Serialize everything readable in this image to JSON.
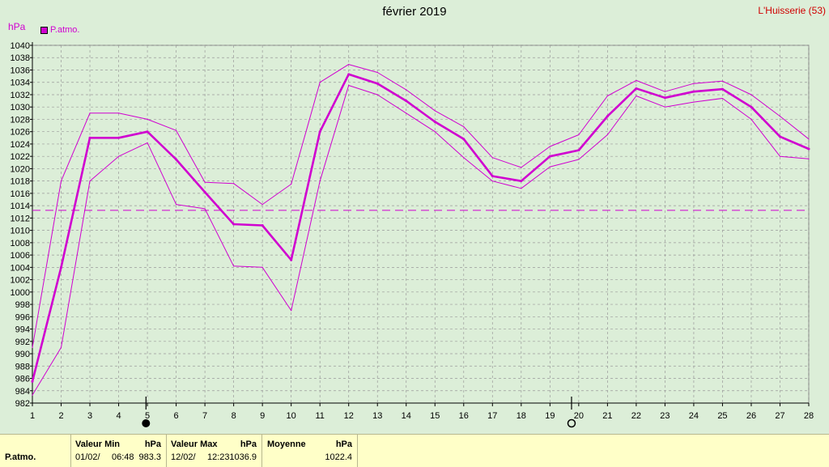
{
  "header": {
    "title": "février 2019",
    "station": "L'Huisserie (53)",
    "unit": "hPa",
    "legend_label": "P.atmo."
  },
  "colors": {
    "series": "#d000d0",
    "station": "#d00000",
    "plot_bg": "#dceed8",
    "footer_bg": "#ffffc8",
    "grid": "#9a9a9a"
  },
  "moon_phases": {
    "full_moon_day": 5,
    "new_moon_day": 20
  },
  "chart_data": {
    "type": "line",
    "title": "février 2019",
    "ylabel": "hPa",
    "ylim": [
      982,
      1040
    ],
    "xlim": [
      1,
      28
    ],
    "x": [
      1,
      2,
      3,
      4,
      5,
      6,
      7,
      8,
      9,
      10,
      11,
      12,
      13,
      14,
      15,
      16,
      17,
      18,
      19,
      20,
      21,
      22,
      23,
      24,
      25,
      26,
      27,
      28
    ],
    "y_ticks": [
      982,
      984,
      986,
      988,
      990,
      992,
      994,
      996,
      998,
      1000,
      1002,
      1004,
      1006,
      1008,
      1010,
      1012,
      1014,
      1016,
      1018,
      1020,
      1022,
      1024,
      1026,
      1028,
      1030,
      1032,
      1034,
      1036,
      1038,
      1040
    ],
    "x_ticks": [
      1,
      2,
      3,
      4,
      5,
      6,
      7,
      8,
      9,
      10,
      11,
      12,
      13,
      14,
      15,
      16,
      17,
      18,
      19,
      20,
      21,
      22,
      23,
      24,
      25,
      26,
      27,
      28
    ],
    "grid": true,
    "reference_line": 1013.25,
    "series": [
      {
        "name": "P.atmo.",
        "role": "mean",
        "values": [
          985.5,
          1004,
          1025,
          1025,
          1026,
          1021.5,
          1016.2,
          1011,
          1010.8,
          1005.2,
          1026,
          1035.3,
          1033.8,
          1031,
          1027.6,
          1024.8,
          1018.8,
          1018,
          1022,
          1023,
          1028.5,
          1033,
          1031.5,
          1032.5,
          1032.9,
          1030,
          1025.2,
          1023.2
        ]
      },
      {
        "role": "max",
        "values": [
          991,
          1018,
          1029,
          1029,
          1028,
          1026.2,
          1017.8,
          1017.6,
          1014.2,
          1017.5,
          1034,
          1036.9,
          1035.6,
          1032.8,
          1029.4,
          1026.8,
          1021.8,
          1020.2,
          1023.6,
          1025.5,
          1031.8,
          1034.3,
          1032.5,
          1033.8,
          1034.2,
          1032,
          1028.5,
          1024.8
        ]
      },
      {
        "role": "min",
        "values": [
          983.3,
          991,
          1018,
          1022,
          1024.2,
          1014.2,
          1013.5,
          1004.2,
          1004,
          997,
          1018,
          1033.5,
          1032,
          1029,
          1026,
          1021.8,
          1018,
          1016.8,
          1020.3,
          1021.5,
          1025.5,
          1031.8,
          1030,
          1030.8,
          1031.4,
          1028,
          1022,
          1021.6
        ]
      }
    ]
  },
  "footer": {
    "variable": "P.atmo.",
    "min_title": "Valeur Min",
    "min_unit": "hPa",
    "min_date": "01/02/",
    "min_time": "06:48",
    "min_value": "983.3",
    "max_title": "Valeur Max",
    "max_unit": "hPa",
    "max_date": "12/02/",
    "max_time": "12:23",
    "max_value": "1036.9",
    "mean_title": "Moyenne",
    "mean_unit": "hPa",
    "mean_value": "1022.4"
  }
}
